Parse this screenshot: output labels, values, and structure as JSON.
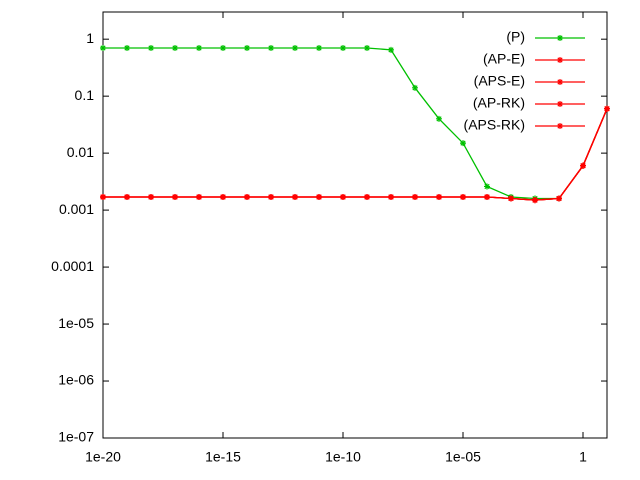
{
  "chart_data": {
    "type": "line",
    "x": [
      1e-20,
      1e-19,
      1e-18,
      1e-17,
      1e-16,
      1e-15,
      1e-14,
      1e-13,
      1e-12,
      1e-11,
      1e-10,
      1e-09,
      1e-08,
      1e-07,
      1e-06,
      1e-05,
      0.0001,
      0.001,
      0.01,
      0.1,
      1,
      10
    ],
    "series": [
      {
        "name": "(P)",
        "color": "#00c000",
        "values": [
          0.7,
          0.7,
          0.7,
          0.7,
          0.7,
          0.7,
          0.7,
          0.7,
          0.7,
          0.7,
          0.7,
          0.7,
          0.65,
          0.14,
          0.04,
          0.015,
          0.0026,
          0.0017,
          0.0016,
          0.0016,
          0.006,
          0.06
        ]
      },
      {
        "name": "(AP-E)",
        "color": "#ff0000",
        "values": [
          0.0017,
          0.0017,
          0.0017,
          0.0017,
          0.0017,
          0.0017,
          0.0017,
          0.0017,
          0.0017,
          0.0017,
          0.0017,
          0.0017,
          0.0017,
          0.0017,
          0.0017,
          0.0017,
          0.0017,
          0.0016,
          0.0015,
          0.0016,
          0.006,
          0.06
        ]
      },
      {
        "name": "(APS-E)",
        "color": "#ff0000",
        "values": [
          0.0017,
          0.0017,
          0.0017,
          0.0017,
          0.0017,
          0.0017,
          0.0017,
          0.0017,
          0.0017,
          0.0017,
          0.0017,
          0.0017,
          0.0017,
          0.0017,
          0.0017,
          0.0017,
          0.0017,
          0.0016,
          0.0015,
          0.0016,
          0.006,
          0.06
        ]
      },
      {
        "name": "(AP-RK)",
        "color": "#ff0000",
        "values": [
          0.0017,
          0.0017,
          0.0017,
          0.0017,
          0.0017,
          0.0017,
          0.0017,
          0.0017,
          0.0017,
          0.0017,
          0.0017,
          0.0017,
          0.0017,
          0.0017,
          0.0017,
          0.0017,
          0.0017,
          0.0016,
          0.0015,
          0.0016,
          0.006,
          0.06
        ]
      },
      {
        "name": "(APS-RK)",
        "color": "#ff0000",
        "values": [
          0.0017,
          0.0017,
          0.0017,
          0.0017,
          0.0017,
          0.0017,
          0.0017,
          0.0017,
          0.0017,
          0.0017,
          0.0017,
          0.0017,
          0.0017,
          0.0017,
          0.0017,
          0.0017,
          0.0017,
          0.0016,
          0.0015,
          0.0016,
          0.006,
          0.06
        ]
      }
    ],
    "xlog": true,
    "ylog": true,
    "xlim": [
      1e-20,
      10
    ],
    "ylim": [
      1e-07,
      3
    ],
    "xticks": [
      1e-20,
      1e-15,
      1e-10,
      {
        "value": 1e-05,
        "label": "1e-05"
      },
      1
    ],
    "yticks": [
      {
        "value": 1e-07,
        "label": "1e-07"
      },
      {
        "value": 1e-06,
        "label": "1e-06"
      },
      {
        "value": 1e-05,
        "label": "1e-05"
      },
      0.0001,
      0.001,
      0.01,
      0.1,
      1
    ],
    "legend": "top right",
    "grid": false
  }
}
